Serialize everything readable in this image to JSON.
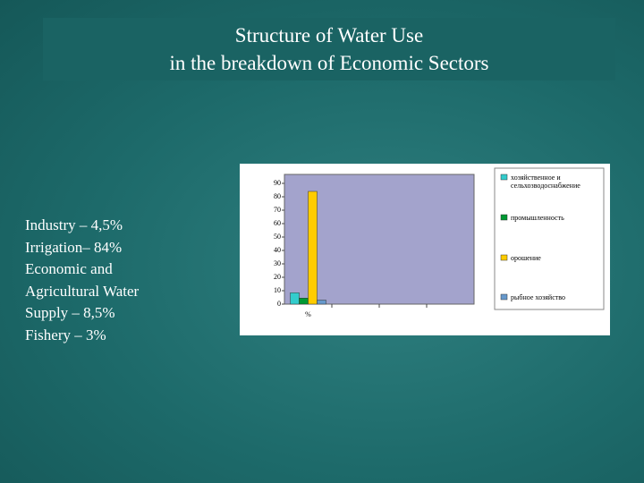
{
  "slide": {
    "title_lines": [
      "Structure of Water Use",
      "in the breakdown of Economic Sectors"
    ],
    "text_lines": [
      "Industry – 4,5%",
      "Irrigation– 84%",
      "Economic and",
      "Agricultural Water",
      "Supply – 8,5%",
      "Fishery – 3%"
    ]
  },
  "chart_data": {
    "type": "bar",
    "categories": [
      "%"
    ],
    "series": [
      {
        "name": "хозяйственное и сельхозводоснабжение",
        "color": "#33cccc",
        "values": [
          8.5
        ]
      },
      {
        "name": "промышленность",
        "color": "#009933",
        "values": [
          4.5
        ]
      },
      {
        "name": "орошение",
        "color": "#ffcc00",
        "values": [
          84
        ]
      },
      {
        "name": "рыбное хозяйство",
        "color": "#6699cc",
        "values": [
          3
        ]
      }
    ],
    "ylim": [
      0,
      90
    ],
    "yticks": [
      0,
      10,
      20,
      30,
      40,
      50,
      60,
      70,
      80,
      90
    ],
    "grid": false
  }
}
